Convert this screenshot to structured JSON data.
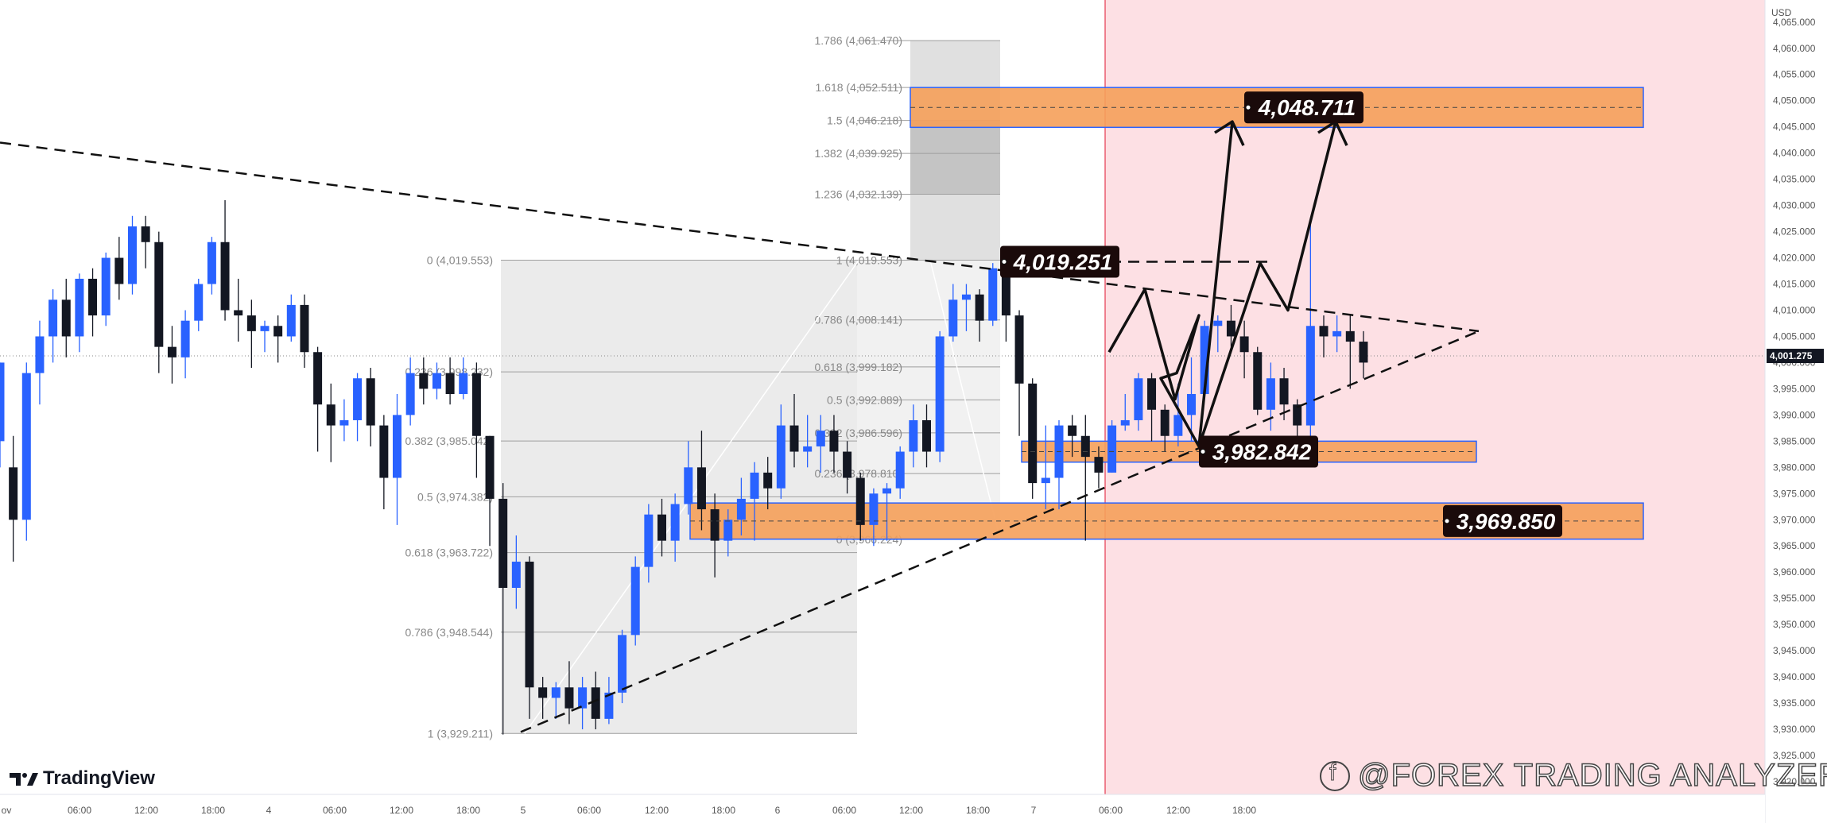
{
  "platform": {
    "brand": "TradingView",
    "currency": "USD"
  },
  "watermark": "@FOREX TRADING ANALYZER",
  "colors": {
    "bull": "#2962ff",
    "bear": "#131722",
    "zone": "#f5a05a",
    "zone_border": "#2962ff",
    "future_zone": "#fde0e4",
    "fib_box": "#ebebeb",
    "callout_bg": "#1a0a0a"
  },
  "chart_data": {
    "type": "candlestick",
    "ylim": [
      3920,
      4068
    ],
    "y_ticks": [
      "4,065.000",
      "4,060.000",
      "4,055.000",
      "4,050.000",
      "4,045.000",
      "4,040.000",
      "4,035.000",
      "4,030.000",
      "4,025.000",
      "4,020.000",
      "4,015.000",
      "4,010.000",
      "4,005.000",
      "4,000.000",
      "3,995.000",
      "3,990.000",
      "3,985.000",
      "3,980.000",
      "3,975.000",
      "3,970.000",
      "3,965.000",
      "3,960.000",
      "3,955.000",
      "3,950.000",
      "3,945.000",
      "3,940.000",
      "3,935.000",
      "3,930.000",
      "3,925.000",
      "3,920.000"
    ],
    "current_price": "4,001.275",
    "x_ticks": [
      "ov",
      "06:00",
      "12:00",
      "18:00",
      "4",
      "06:00",
      "12:00",
      "18:00",
      "5",
      "06:00",
      "12:00",
      "18:00",
      "6",
      "06:00",
      "12:00",
      "18:00",
      "7",
      "06:00",
      "12:00",
      "18:00"
    ],
    "candles": [
      [
        3985,
        4000,
        4000,
        3980
      ],
      [
        3980,
        3970,
        3986,
        3962
      ],
      [
        3970,
        3998,
        4000,
        3966
      ],
      [
        3998,
        4005,
        4008,
        3992
      ],
      [
        4005,
        4012,
        4014,
        4000
      ],
      [
        4012,
        4005,
        4016,
        4001
      ],
      [
        4005,
        4016,
        4017,
        4002
      ],
      [
        4016,
        4009,
        4018,
        4005
      ],
      [
        4009,
        4020,
        4021,
        4007
      ],
      [
        4020,
        4015,
        4024,
        4012
      ],
      [
        4015,
        4026,
        4028,
        4013
      ],
      [
        4026,
        4023,
        4028,
        4018
      ],
      [
        4023,
        4003,
        4025,
        3998
      ],
      [
        4003,
        4001,
        4007,
        3996
      ],
      [
        4001,
        4008,
        4010,
        3997
      ],
      [
        4008,
        4015,
        4016,
        4006
      ],
      [
        4015,
        4023,
        4024,
        4013
      ],
      [
        4023,
        4010,
        4031,
        4008
      ],
      [
        4010,
        4009,
        4016,
        4004
      ],
      [
        4009,
        4006,
        4012,
        3999
      ],
      [
        4006,
        4007,
        4008,
        4002
      ],
      [
        4007,
        4005,
        4009,
        4000
      ],
      [
        4005,
        4011,
        4013,
        4004
      ],
      [
        4011,
        4002,
        4013,
        3999
      ],
      [
        4002,
        3992,
        4003,
        3983
      ],
      [
        3992,
        3988,
        3996,
        3981
      ],
      [
        3988,
        3989,
        3993,
        3985
      ],
      [
        3989,
        3997,
        3998,
        3985
      ],
      [
        3997,
        3988,
        3999,
        3984
      ],
      [
        3988,
        3978,
        3990,
        3972
      ],
      [
        3978,
        3990,
        3994,
        3969
      ],
      [
        3990,
        3998,
        4001,
        3988
      ],
      [
        3998,
        3995,
        4001,
        3992
      ],
      [
        3995,
        3998,
        4000,
        3993
      ],
      [
        3998,
        3994,
        4001,
        3992
      ],
      [
        3994,
        3998,
        4001,
        3993
      ],
      [
        3998,
        3986,
        4000,
        3978
      ],
      [
        3986,
        3974,
        3986,
        3965
      ],
      [
        3974,
        3957,
        3977,
        3929
      ],
      [
        3957,
        3962,
        3967,
        3953
      ],
      [
        3962,
        3938,
        3963,
        3932
      ],
      [
        3938,
        3936,
        3940,
        3932
      ],
      [
        3936,
        3938,
        3939,
        3932
      ],
      [
        3938,
        3934,
        3943,
        3931
      ],
      [
        3934,
        3938,
        3940,
        3930
      ],
      [
        3938,
        3932,
        3941,
        3930
      ],
      [
        3932,
        3937,
        3940,
        3931
      ],
      [
        3937,
        3948,
        3949,
        3935
      ],
      [
        3948,
        3961,
        3963,
        3946
      ],
      [
        3961,
        3971,
        3973,
        3958
      ],
      [
        3971,
        3966,
        3974,
        3963
      ],
      [
        3966,
        3973,
        3975,
        3962
      ],
      [
        3973,
        3980,
        3985,
        3971
      ],
      [
        3980,
        3972,
        3987,
        3968
      ],
      [
        3972,
        3966,
        3975,
        3959
      ],
      [
        3966,
        3970,
        3972,
        3963
      ],
      [
        3970,
        3974,
        3978,
        3967
      ],
      [
        3974,
        3979,
        3981,
        3966
      ],
      [
        3979,
        3976,
        3982,
        3972
      ],
      [
        3976,
        3988,
        3992,
        3974
      ],
      [
        3988,
        3983,
        3994,
        3980
      ],
      [
        3983,
        3984,
        3990,
        3980
      ],
      [
        3984,
        3987,
        3990,
        3979
      ],
      [
        3987,
        3983,
        3990,
        3979
      ],
      [
        3983,
        3978,
        3985,
        3975
      ],
      [
        3978,
        3969,
        3979,
        3966
      ],
      [
        3969,
        3975,
        3976,
        3965
      ],
      [
        3975,
        3976,
        3977,
        3966
      ],
      [
        3976,
        3983,
        3984,
        3974
      ],
      [
        3983,
        3989,
        3992,
        3980
      ],
      [
        3989,
        3983,
        3992,
        3980
      ],
      [
        3983,
        4005,
        4006,
        3981
      ],
      [
        4005,
        4012,
        4015,
        4004
      ],
      [
        4012,
        4013,
        4015,
        4006
      ],
      [
        4013,
        4008,
        4014,
        4004
      ],
      [
        4008,
        4018,
        4019,
        4007
      ],
      [
        4018,
        4009,
        4019,
        4004
      ],
      [
        4009,
        3996,
        4010,
        3986
      ],
      [
        3996,
        3977,
        3997,
        3974
      ],
      [
        3977,
        3978,
        3988,
        3972
      ],
      [
        3978,
        3988,
        3989,
        3972
      ],
      [
        3988,
        3986,
        3990,
        3982
      ],
      [
        3986,
        3982,
        3990,
        3966
      ],
      [
        3982,
        3979,
        3984,
        3976
      ],
      [
        3979,
        3988,
        3989,
        3979
      ],
      [
        3988,
        3989,
        3994,
        3987
      ],
      [
        3989,
        3997,
        3998,
        3987
      ],
      [
        3997,
        3991,
        3998,
        3985
      ],
      [
        3991,
        3986,
        3992,
        3983
      ],
      [
        3986,
        3990,
        3996,
        3984
      ],
      [
        3990,
        3994,
        4001,
        3985
      ],
      [
        3994,
        4007,
        4008,
        3993
      ],
      [
        4007,
        4008,
        4009,
        4002
      ],
      [
        4008,
        4005,
        4011,
        4003
      ],
      [
        4005,
        4002,
        4008,
        3997
      ],
      [
        4002,
        3991,
        4003,
        3990
      ],
      [
        3991,
        3997,
        4000,
        3987
      ],
      [
        3997,
        3992,
        3999,
        3989
      ],
      [
        3992,
        3988,
        3993,
        3984
      ],
      [
        3988,
        4007,
        4027,
        3986
      ],
      [
        4007,
        4005,
        4009,
        4001
      ],
      [
        4005,
        4006,
        4009,
        4002
      ],
      [
        4006,
        4004,
        4009,
        3995
      ],
      [
        4004,
        4000,
        4006,
        3997
      ]
    ],
    "fib_left": {
      "levels": [
        "0 (4,019.553)",
        "0.236 (3,998.232)",
        "0.382 (3,985.042)",
        "0.5 (3,974.382)",
        "0.618 (3,963.722)",
        "0.786 (3,948.544)",
        "1 (3,929.211)"
      ],
      "values": [
        4019.553,
        3998.232,
        3985.042,
        3974.382,
        3963.722,
        3948.544,
        3929.211
      ]
    },
    "fib_right": {
      "levels": [
        "1.786 (4,061.470)",
        "1.618 (4,052.511)",
        "1.5 (4,046.218)",
        "1.382 (4,039.925)",
        "1.236 (4,032.139)",
        "1 (4,019.553)",
        "0.786 (4,008.141)",
        "0.618 (3,999.182)",
        "0.5 (3,992.889)",
        "0.382 (3,986.596)",
        "0.236 (3,978.810)",
        "0 (3,966.224)"
      ],
      "values": [
        4061.47,
        4052.511,
        4046.218,
        4039.925,
        4032.139,
        4019.553,
        4008.141,
        3999.182,
        3992.889,
        3986.596,
        3978.81,
        3966.224
      ]
    },
    "zones": [
      {
        "label": "4,048.711",
        "top": 4052.511,
        "bottom": 4044.9
      },
      {
        "label": "3,982.842",
        "top": 3985.0,
        "bottom": 3981.0
      },
      {
        "label": "3,969.850",
        "top": 3973.2,
        "bottom": 3966.3
      }
    ],
    "callouts": [
      "4,019.251"
    ]
  }
}
